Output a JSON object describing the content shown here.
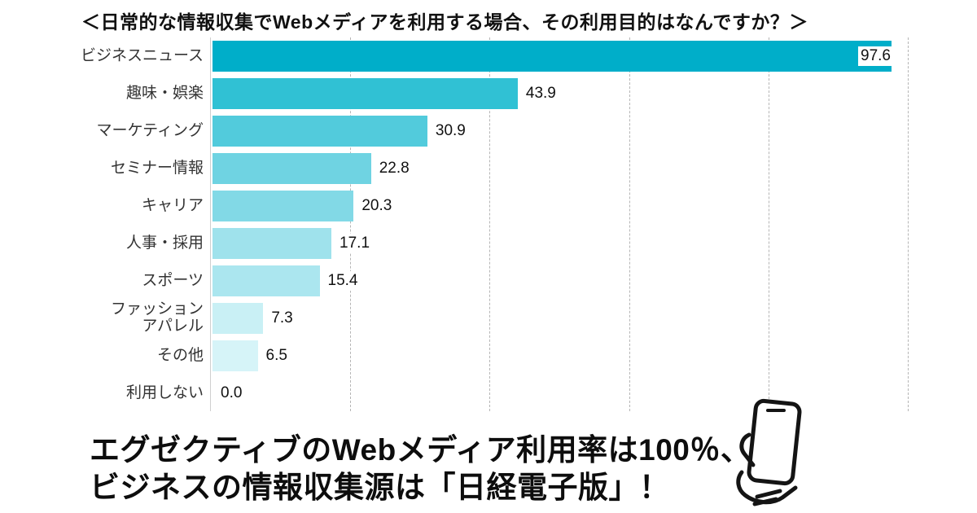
{
  "page": {
    "background": "#ffffff"
  },
  "chart_data": {
    "type": "bar",
    "orientation": "horizontal",
    "title": "＜日常的な情報収集でWebメディアを利用する場合、その利用目的はなんですか？＞",
    "categories": [
      "ビジネスニュース",
      "趣味・娯楽",
      "マーケティング",
      "セミナー情報",
      "キャリア",
      "人事・採用",
      "スポーツ",
      "ファッション\nアパレル",
      "その他",
      "利用しない"
    ],
    "values": [
      97.6,
      43.9,
      30.9,
      22.8,
      20.3,
      17.1,
      15.4,
      7.3,
      6.5,
      0.0
    ],
    "value_labels": [
      "97.6",
      "43.9",
      "30.9",
      "22.8",
      "20.3",
      "17.1",
      "15.4",
      "7.3",
      "6.5",
      "0.0"
    ],
    "xlabel": "",
    "ylabel": "",
    "xlim": [
      0,
      100
    ],
    "gridlines": [
      20,
      40,
      60,
      80,
      100
    ],
    "grid_style": "dashed",
    "legend": "none",
    "bar_colors": [
      "#00aec9",
      "#30c1d4",
      "#52cbdc",
      "#6fd3e2",
      "#82d9e6",
      "#9fe2ec",
      "#abe6ef",
      "#c9f0f5",
      "#d6f4f8",
      "#e8f9fb"
    ],
    "grid_color": "#b5b5b5",
    "axis_color": "#cfcfcf"
  },
  "caption": {
    "line1": "エグゼクティブのWebメディア利用率は100％、",
    "line2": "ビジネスの情報収集源は「日経電子版」！"
  },
  "icons": {
    "phone": "hand-holding-smartphone-icon"
  }
}
